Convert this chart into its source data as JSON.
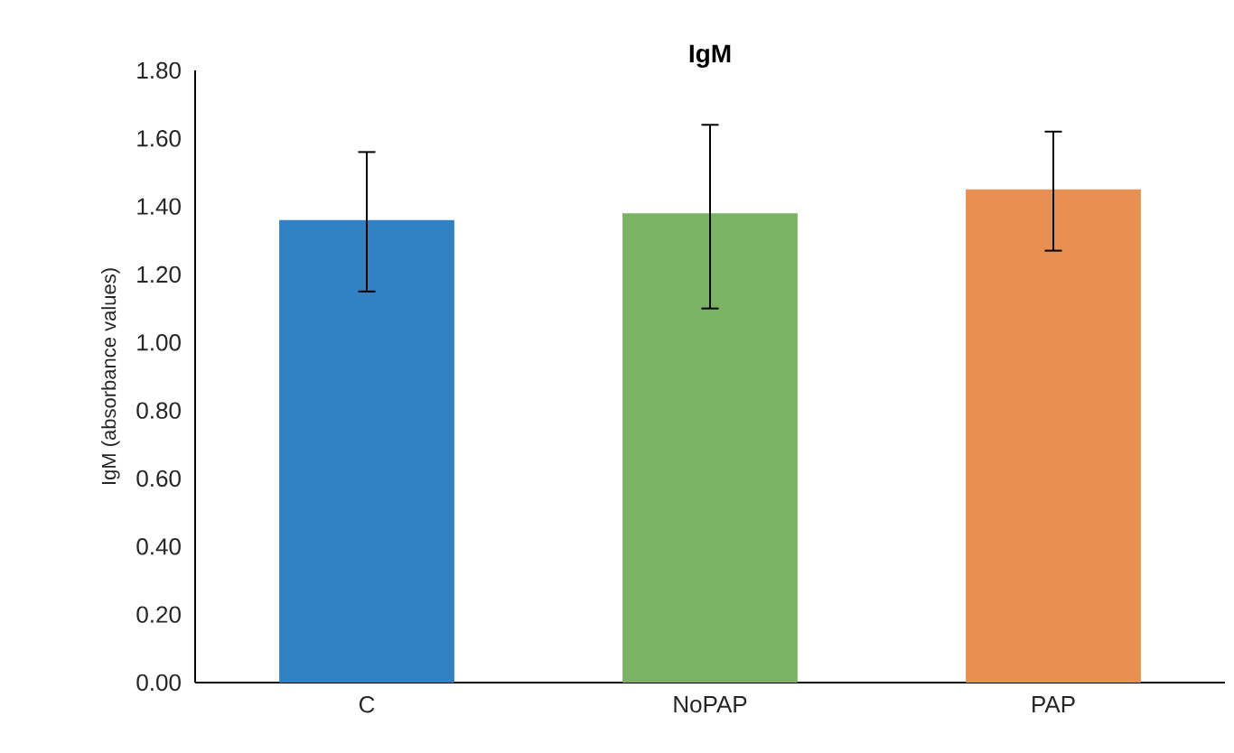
{
  "chart_data": {
    "type": "bar",
    "title": "**IgM**",
    "ylabel": "IgM (absorbance values)",
    "categories": [
      "C",
      "NoPAP",
      "PAP"
    ],
    "values": [
      1.36,
      1.38,
      1.45
    ],
    "errors": [
      [
        1.15,
        1.56
      ],
      [
        1.1,
        1.64
      ],
      [
        1.27,
        1.62
      ]
    ],
    "colors": [
      "#3182c5",
      "#7bb365",
      "#e8904f"
    ],
    "ylim": [
      0,
      1.8
    ],
    "yticks": [
      {
        "value": 0,
        "label": "0.00"
      },
      {
        "value": 0.2,
        "label": "0.20"
      },
      {
        "value": 0.4,
        "label": "0.40"
      },
      {
        "value": 0.6,
        "label": "0.60"
      },
      {
        "value": 0.8,
        "label": "0.80"
      },
      {
        "value": 1.0,
        "label": "1.00"
      },
      {
        "value": 1.2,
        "label": "1.20"
      },
      {
        "value": 1.4,
        "label": "1.40"
      },
      {
        "value": 1.6,
        "label": "1.60"
      },
      {
        "value": 1.8,
        "label": "1.80"
      }
    ],
    "grid": false
  }
}
